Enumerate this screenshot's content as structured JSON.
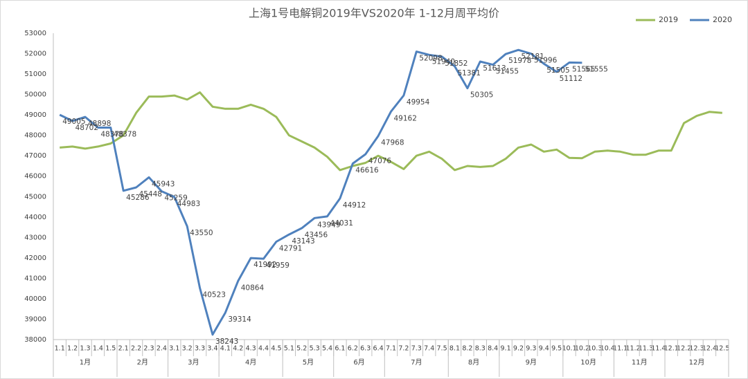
{
  "chart_data": {
    "type": "line",
    "title": "上海1号电解铜2019年VS2020年  1-12月周平均价",
    "categories": [
      "1.1",
      "1.2",
      "1.3",
      "1.4",
      "1.5",
      "2.1",
      "2.2",
      "2.3",
      "2.4",
      "3.1",
      "3.2",
      "3.3",
      "3.4",
      "4.1",
      "4.2",
      "4.3",
      "4.4",
      "4.5",
      "5.1",
      "5.2",
      "5.3",
      "5.4",
      "6.1",
      "6.2",
      "6.3",
      "6.4",
      "7.1",
      "7.2",
      "7.3",
      "7.4",
      "7.5",
      "8.1",
      "8.2",
      "8.3",
      "8.4",
      "9.1",
      "9.2",
      "9.3",
      "9.4",
      "9.5",
      "10.1",
      "10.2",
      "10.3",
      "10.4",
      "11.1",
      "11.2",
      "11.3",
      "11.4",
      "12.1",
      "12.2",
      "12.3",
      "12.4",
      "12.5"
    ],
    "x_groups": [
      {
        "label": "1月",
        "span": 5
      },
      {
        "label": "2月",
        "span": 4
      },
      {
        "label": "3月",
        "span": 4
      },
      {
        "label": "4月",
        "span": 5
      },
      {
        "label": "5月",
        "span": 4
      },
      {
        "label": "6月",
        "span": 4
      },
      {
        "label": "7月",
        "span": 5
      },
      {
        "label": "8月",
        "span": 4
      },
      {
        "label": "9月",
        "span": 5
      },
      {
        "label": "10月",
        "span": 4
      },
      {
        "label": "11月",
        "span": 4
      },
      {
        "label": "12月",
        "span": 5
      }
    ],
    "series": [
      {
        "name": "2019",
        "color": "#9bbb59",
        "show_labels": false,
        "values": [
          47400,
          47450,
          47350,
          47450,
          47600,
          48000,
          49100,
          49900,
          49900,
          49950,
          49750,
          50100,
          49400,
          49300,
          49300,
          49500,
          49300,
          48900,
          48000,
          47700,
          47400,
          46950,
          46300,
          46500,
          46650,
          47000,
          46700,
          46350,
          47000,
          47200,
          46850,
          46300,
          46500,
          46450,
          46500,
          46850,
          47400,
          47550,
          47200,
          47300,
          46900,
          46880,
          47200,
          47250,
          47200,
          47050,
          47050,
          47250,
          47250,
          48600,
          48950,
          49150,
          49100
        ]
      },
      {
        "name": "2020",
        "color": "#4f81bd",
        "show_labels": true,
        "values": [
          49005,
          48702,
          48898,
          48378,
          48378,
          45286,
          45448,
          45943,
          45259,
          44983,
          43550,
          40523,
          38243,
          39314,
          40864,
          41992,
          41959,
          42791,
          43143,
          43456,
          43949,
          44031,
          44912,
          46616,
          47076,
          47968,
          49162,
          49954,
          52098,
          51940,
          51852,
          51381,
          50305,
          51613,
          51455,
          51978,
          52181,
          51996,
          51505,
          51112,
          51565,
          51555,
          null,
          null,
          null,
          null,
          null,
          null,
          null,
          null,
          null,
          null,
          null
        ]
      }
    ],
    "ylim": [
      38000,
      53000
    ],
    "yticks": [
      38000,
      39000,
      40000,
      41000,
      42000,
      43000,
      44000,
      45000,
      46000,
      47000,
      48000,
      49000,
      50000,
      51000,
      52000,
      53000
    ],
    "grid": false,
    "legend": "top-right"
  }
}
